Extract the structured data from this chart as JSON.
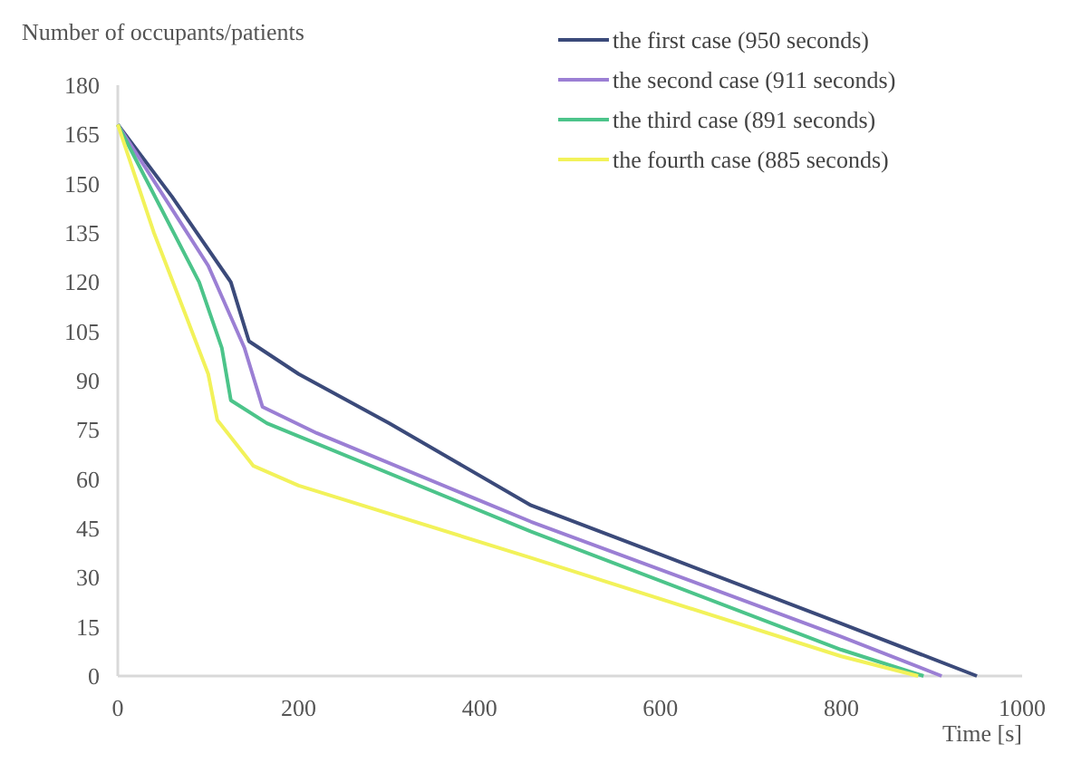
{
  "chart_data": {
    "type": "line",
    "xlabel": "Time [s]",
    "ylabel": "Number of occupants/patients",
    "xlim": [
      0,
      1000
    ],
    "xticks": [
      0,
      200,
      400,
      600,
      800,
      1000
    ],
    "ylim": [
      0,
      180
    ],
    "yticks": [
      0,
      15,
      30,
      45,
      60,
      75,
      90,
      105,
      120,
      135,
      150,
      165,
      180
    ],
    "grid": false,
    "legend": "top right",
    "series": [
      {
        "name": "the first case (950 seconds)",
        "color": "#3b4a7a",
        "x": [
          0,
          60,
          125,
          145,
          200,
          300,
          457,
          600,
          800,
          950
        ],
        "values": [
          168,
          146,
          120,
          102,
          92,
          77,
          52,
          37,
          16,
          0
        ]
      },
      {
        "name": "the second case (911 seconds)",
        "color": "#9b7fd4",
        "x": [
          0,
          100,
          140,
          160,
          220,
          457,
          800,
          911
        ],
        "values": [
          168,
          125,
          100,
          82,
          74,
          47,
          12,
          0
        ]
      },
      {
        "name": "the third case (891 seconds)",
        "color": "#4cc48a",
        "x": [
          0,
          90,
          115,
          125,
          165,
          457,
          800,
          891
        ],
        "values": [
          168,
          120,
          100,
          84,
          77,
          44,
          8,
          0
        ]
      },
      {
        "name": "the fourth case (885 seconds)",
        "color": "#f2f25a",
        "x": [
          0,
          40,
          75,
          100,
          110,
          150,
          200,
          457,
          800,
          885
        ],
        "values": [
          168,
          135,
          110,
          92,
          78,
          64,
          58,
          36,
          6,
          0
        ]
      }
    ]
  }
}
